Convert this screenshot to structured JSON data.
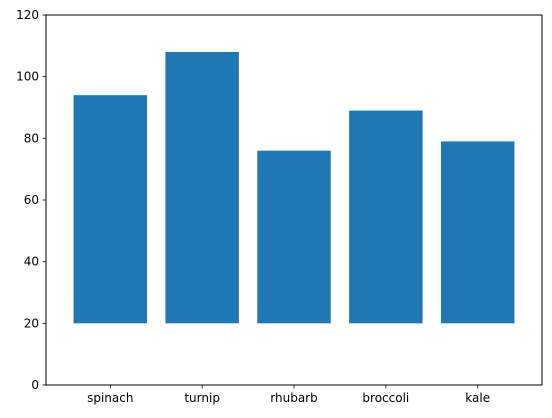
{
  "chart_data": {
    "type": "bar",
    "title": "",
    "xlabel": "",
    "ylabel": "",
    "categories": [
      "spinach",
      "turnip",
      "rhubarb",
      "broccoli",
      "kale"
    ],
    "bottoms": [
      20,
      20,
      20,
      20,
      20
    ],
    "tops": [
      94,
      108,
      76,
      89,
      79
    ],
    "ylim": [
      0,
      120
    ],
    "yticks": [
      0,
      20,
      40,
      60,
      80,
      100,
      120
    ],
    "grid": false,
    "colors": {
      "bar": "#1f77b4",
      "axis": "#000000",
      "background": "#ffffff"
    }
  }
}
